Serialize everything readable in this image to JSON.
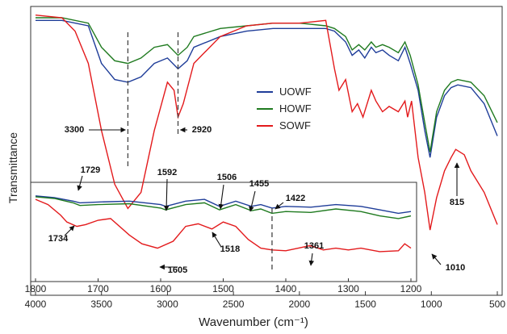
{
  "chart_data": [
    {
      "type": "line",
      "title": "",
      "xlabel": "Wavenumber (cm⁻¹)",
      "ylabel": "Transmittance",
      "x_range": [
        4000,
        500
      ],
      "x_ticks": [
        4000,
        3500,
        3000,
        2500,
        2000,
        1500,
        1000,
        500
      ],
      "legend_position": "center",
      "series": [
        {
          "name": "UOWF",
          "color": "#1f3d99",
          "points": [
            [
              4000,
              0.96
            ],
            [
              3800,
              0.96
            ],
            [
              3600,
              0.94
            ],
            [
              3500,
              0.8
            ],
            [
              3400,
              0.74
            ],
            [
              3300,
              0.73
            ],
            [
              3200,
              0.75
            ],
            [
              3100,
              0.8
            ],
            [
              3000,
              0.82
            ],
            [
              2920,
              0.78
            ],
            [
              2850,
              0.81
            ],
            [
              2800,
              0.86
            ],
            [
              2600,
              0.9
            ],
            [
              2400,
              0.92
            ],
            [
              2200,
              0.93
            ],
            [
              2000,
              0.93
            ],
            [
              1800,
              0.93
            ],
            [
              1734,
              0.92
            ],
            [
              1650,
              0.88
            ],
            [
              1600,
              0.83
            ],
            [
              1550,
              0.85
            ],
            [
              1505,
              0.82
            ],
            [
              1455,
              0.86
            ],
            [
              1420,
              0.84
            ],
            [
              1370,
              0.85
            ],
            [
              1320,
              0.83
            ],
            [
              1250,
              0.81
            ],
            [
              1200,
              0.86
            ],
            [
              1160,
              0.8
            ],
            [
              1100,
              0.7
            ],
            [
              1050,
              0.55
            ],
            [
              1010,
              0.45
            ],
            [
              960,
              0.6
            ],
            [
              900,
              0.68
            ],
            [
              850,
              0.71
            ],
            [
              800,
              0.72
            ],
            [
              700,
              0.71
            ],
            [
              600,
              0.65
            ],
            [
              500,
              0.53
            ]
          ]
        },
        {
          "name": "HOWF",
          "color": "#1f7a1f",
          "points": [
            [
              4000,
              0.97
            ],
            [
              3800,
              0.97
            ],
            [
              3600,
              0.95
            ],
            [
              3500,
              0.86
            ],
            [
              3400,
              0.81
            ],
            [
              3300,
              0.8
            ],
            [
              3200,
              0.82
            ],
            [
              3100,
              0.86
            ],
            [
              3000,
              0.87
            ],
            [
              2920,
              0.83
            ],
            [
              2850,
              0.86
            ],
            [
              2800,
              0.9
            ],
            [
              2600,
              0.93
            ],
            [
              2400,
              0.94
            ],
            [
              2200,
              0.95
            ],
            [
              2000,
              0.95
            ],
            [
              1800,
              0.94
            ],
            [
              1734,
              0.93
            ],
            [
              1650,
              0.9
            ],
            [
              1600,
              0.85
            ],
            [
              1550,
              0.87
            ],
            [
              1505,
              0.85
            ],
            [
              1455,
              0.88
            ],
            [
              1420,
              0.86
            ],
            [
              1370,
              0.87
            ],
            [
              1320,
              0.86
            ],
            [
              1250,
              0.84
            ],
            [
              1200,
              0.88
            ],
            [
              1160,
              0.83
            ],
            [
              1100,
              0.72
            ],
            [
              1050,
              0.58
            ],
            [
              1010,
              0.47
            ],
            [
              960,
              0.62
            ],
            [
              900,
              0.7
            ],
            [
              850,
              0.73
            ],
            [
              800,
              0.74
            ],
            [
              700,
              0.73
            ],
            [
              600,
              0.68
            ],
            [
              500,
              0.58
            ]
          ]
        },
        {
          "name": "SOWF",
          "color": "#e31a1c",
          "points": [
            [
              4000,
              0.98
            ],
            [
              3800,
              0.97
            ],
            [
              3700,
              0.92
            ],
            [
              3600,
              0.8
            ],
            [
              3500,
              0.55
            ],
            [
              3400,
              0.35
            ],
            [
              3300,
              0.26
            ],
            [
              3200,
              0.32
            ],
            [
              3100,
              0.55
            ],
            [
              3000,
              0.73
            ],
            [
              2950,
              0.7
            ],
            [
              2920,
              0.6
            ],
            [
              2880,
              0.65
            ],
            [
              2800,
              0.8
            ],
            [
              2600,
              0.9
            ],
            [
              2400,
              0.94
            ],
            [
              2200,
              0.95
            ],
            [
              2000,
              0.95
            ],
            [
              1800,
              0.96
            ],
            [
              1760,
              0.85
            ],
            [
              1734,
              0.78
            ],
            [
              1700,
              0.7
            ],
            [
              1650,
              0.74
            ],
            [
              1600,
              0.62
            ],
            [
              1560,
              0.65
            ],
            [
              1518,
              0.6
            ],
            [
              1455,
              0.7
            ],
            [
              1420,
              0.66
            ],
            [
              1370,
              0.62
            ],
            [
              1320,
              0.64
            ],
            [
              1250,
              0.62
            ],
            [
              1200,
              0.66
            ],
            [
              1180,
              0.6
            ],
            [
              1150,
              0.66
            ],
            [
              1100,
              0.45
            ],
            [
              1050,
              0.32
            ],
            [
              1010,
              0.18
            ],
            [
              960,
              0.3
            ],
            [
              900,
              0.4
            ],
            [
              850,
              0.45
            ],
            [
              815,
              0.48
            ],
            [
              750,
              0.46
            ],
            [
              700,
              0.4
            ],
            [
              600,
              0.32
            ],
            [
              500,
              0.2
            ]
          ]
        }
      ],
      "annotations": [
        {
          "text": "3300",
          "x": 3300
        },
        {
          "text": "2920",
          "x": 2920
        },
        {
          "text": "1010",
          "x": 1010
        },
        {
          "text": "815",
          "x": 815
        }
      ]
    },
    {
      "type": "line",
      "title": "",
      "x_range": [
        1800,
        1200
      ],
      "x_ticks": [
        1800,
        1700,
        1600,
        1500,
        1400,
        1300,
        1200
      ],
      "series": [
        {
          "name": "UOWF",
          "color": "#1f3d99",
          "points": [
            [
              1800,
              0.9
            ],
            [
              1770,
              0.88
            ],
            [
              1740,
              0.84
            ],
            [
              1729,
              0.82
            ],
            [
              1700,
              0.83
            ],
            [
              1650,
              0.84
            ],
            [
              1600,
              0.8
            ],
            [
              1592,
              0.78
            ],
            [
              1560,
              0.84
            ],
            [
              1530,
              0.86
            ],
            [
              1506,
              0.78
            ],
            [
              1480,
              0.84
            ],
            [
              1455,
              0.78
            ],
            [
              1440,
              0.8
            ],
            [
              1422,
              0.76
            ],
            [
              1400,
              0.78
            ],
            [
              1360,
              0.77
            ],
            [
              1320,
              0.8
            ],
            [
              1280,
              0.78
            ],
            [
              1250,
              0.74
            ],
            [
              1220,
              0.7
            ],
            [
              1200,
              0.72
            ]
          ]
        },
        {
          "name": "HOWF",
          "color": "#1f7a1f",
          "points": [
            [
              1800,
              0.89
            ],
            [
              1770,
              0.87
            ],
            [
              1740,
              0.82
            ],
            [
              1729,
              0.79
            ],
            [
              1700,
              0.8
            ],
            [
              1650,
              0.81
            ],
            [
              1600,
              0.76
            ],
            [
              1592,
              0.74
            ],
            [
              1560,
              0.8
            ],
            [
              1530,
              0.82
            ],
            [
              1506,
              0.74
            ],
            [
              1480,
              0.8
            ],
            [
              1455,
              0.73
            ],
            [
              1440,
              0.75
            ],
            [
              1422,
              0.7
            ],
            [
              1400,
              0.72
            ],
            [
              1360,
              0.71
            ],
            [
              1320,
              0.75
            ],
            [
              1280,
              0.72
            ],
            [
              1250,
              0.67
            ],
            [
              1220,
              0.64
            ],
            [
              1200,
              0.67
            ]
          ]
        },
        {
          "name": "SOWF",
          "color": "#e31a1c",
          "points": [
            [
              1800,
              0.86
            ],
            [
              1780,
              0.8
            ],
            [
              1760,
              0.68
            ],
            [
              1750,
              0.6
            ],
            [
              1734,
              0.55
            ],
            [
              1720,
              0.57
            ],
            [
              1700,
              0.62
            ],
            [
              1680,
              0.64
            ],
            [
              1650,
              0.45
            ],
            [
              1630,
              0.35
            ],
            [
              1605,
              0.3
            ],
            [
              1580,
              0.38
            ],
            [
              1560,
              0.55
            ],
            [
              1540,
              0.58
            ],
            [
              1518,
              0.52
            ],
            [
              1500,
              0.6
            ],
            [
              1480,
              0.55
            ],
            [
              1460,
              0.4
            ],
            [
              1440,
              0.3
            ],
            [
              1422,
              0.28
            ],
            [
              1400,
              0.27
            ],
            [
              1380,
              0.3
            ],
            [
              1361,
              0.33
            ],
            [
              1340,
              0.28
            ],
            [
              1320,
              0.3
            ],
            [
              1300,
              0.28
            ],
            [
              1280,
              0.3
            ],
            [
              1250,
              0.26
            ],
            [
              1220,
              0.27
            ],
            [
              1210,
              0.35
            ],
            [
              1200,
              0.3
            ]
          ]
        }
      ],
      "annotations": [
        {
          "text": "1729",
          "x": 1729
        },
        {
          "text": "1592",
          "x": 1592
        },
        {
          "text": "1506",
          "x": 1506
        },
        {
          "text": "1455",
          "x": 1455
        },
        {
          "text": "1422",
          "x": 1422
        },
        {
          "text": "1734",
          "x": 1734
        },
        {
          "text": "1605",
          "x": 1605
        },
        {
          "text": "1518",
          "x": 1518
        },
        {
          "text": "1361",
          "x": 1361
        }
      ]
    }
  ]
}
